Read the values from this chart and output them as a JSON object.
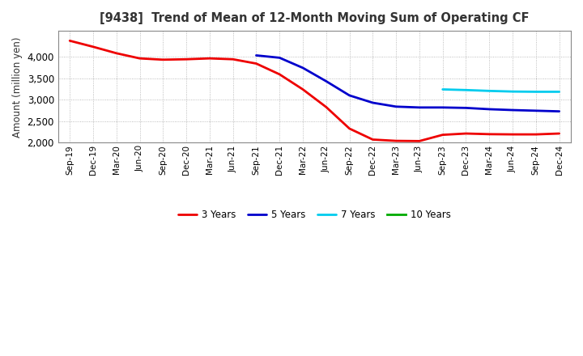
{
  "title": "[9438]  Trend of Mean of 12-Month Moving Sum of Operating CF",
  "ylabel": "Amount (million yen)",
  "ylim": [
    2000,
    4600
  ],
  "yticks": [
    2000,
    2500,
    3000,
    3500,
    4000
  ],
  "background_color": "#ffffff",
  "grid_color": "#aaaaaa",
  "title_color": "#333333",
  "series": {
    "3 Years": {
      "color": "#ee0000",
      "data": {
        "Sep-19": 4370,
        "Dec-19": 4230,
        "Mar-20": 4080,
        "Jun-20": 3960,
        "Sep-20": 3930,
        "Dec-20": 3940,
        "Mar-21": 3960,
        "Jun-21": 3940,
        "Sep-21": 3840,
        "Dec-21": 3590,
        "Mar-22": 3240,
        "Jun-22": 2830,
        "Sep-22": 2330,
        "Dec-22": 2075,
        "Mar-23": 2045,
        "Jun-23": 2040,
        "Sep-23": 2185,
        "Dec-23": 2215,
        "Mar-24": 2200,
        "Jun-24": 2195,
        "Sep-24": 2195,
        "Dec-24": 2215
      }
    },
    "5 Years": {
      "color": "#0000cc",
      "data": {
        "Sep-21": 4030,
        "Dec-21": 3975,
        "Mar-22": 3740,
        "Jun-22": 3430,
        "Sep-22": 3100,
        "Dec-22": 2930,
        "Mar-23": 2840,
        "Jun-23": 2820,
        "Sep-23": 2820,
        "Dec-23": 2810,
        "Mar-24": 2780,
        "Jun-24": 2760,
        "Sep-24": 2745,
        "Dec-24": 2730
      }
    },
    "7 Years": {
      "color": "#00ccee",
      "data": {
        "Sep-23": 3240,
        "Dec-23": 3225,
        "Mar-24": 3205,
        "Jun-24": 3190,
        "Sep-24": 3185,
        "Dec-24": 3185
      }
    },
    "10 Years": {
      "color": "#00aa00",
      "data": {}
    }
  },
  "xtick_labels": [
    "Sep-19",
    "Dec-19",
    "Mar-20",
    "Jun-20",
    "Sep-20",
    "Dec-20",
    "Mar-21",
    "Jun-21",
    "Sep-21",
    "Dec-21",
    "Mar-22",
    "Jun-22",
    "Sep-22",
    "Dec-22",
    "Mar-23",
    "Jun-23",
    "Sep-23",
    "Dec-23",
    "Mar-24",
    "Jun-24",
    "Sep-24",
    "Dec-24"
  ]
}
